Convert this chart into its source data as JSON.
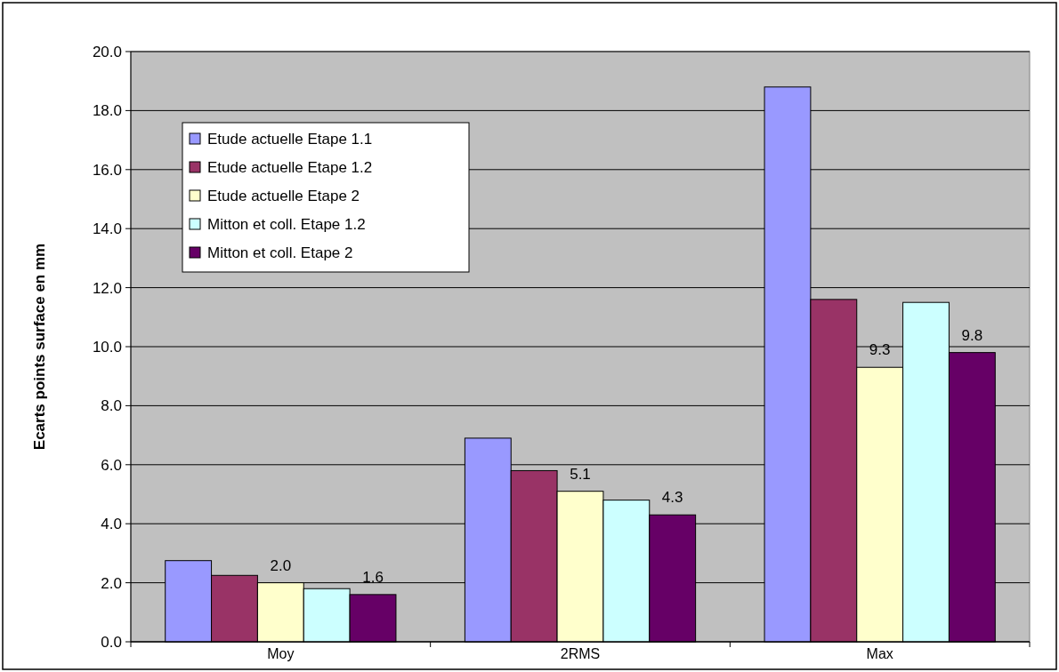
{
  "chart_data": {
    "type": "bar",
    "ylabel": "Ecarts points surface en mm",
    "categories": [
      "Moy",
      "2RMS",
      "Max"
    ],
    "series": [
      {
        "name": "Etude actuelle Etape 1.1",
        "color": "#9999ff",
        "values": [
          2.75,
          6.9,
          18.8
        ]
      },
      {
        "name": "Etude actuelle Etape 1.2",
        "color": "#993366",
        "values": [
          2.25,
          5.8,
          11.6
        ]
      },
      {
        "name": "Etude actuelle Etape 2",
        "color": "#ffffcc",
        "values": [
          2.0,
          5.1,
          9.3
        ],
        "value_labels": [
          "2.0",
          "5.1",
          "9.3"
        ]
      },
      {
        "name": "Mitton et coll. Etape 1.2",
        "color": "#ccffff",
        "values": [
          1.8,
          4.8,
          11.5
        ]
      },
      {
        "name": "Mitton et coll. Etape 2",
        "color": "#660066",
        "values": [
          1.6,
          4.3,
          9.8
        ],
        "value_labels": [
          "1.6",
          "4.3",
          "9.8"
        ]
      }
    ],
    "ylim": [
      0,
      20
    ],
    "yticks": [
      {
        "value": 0,
        "label": "0.0"
      },
      {
        "value": 2,
        "label": "2.0"
      },
      {
        "value": 4,
        "label": "4.0"
      },
      {
        "value": 6,
        "label": "6.0"
      },
      {
        "value": 8,
        "label": "8.0"
      },
      {
        "value": 10,
        "label": "10.0"
      },
      {
        "value": 12,
        "label": "12.0"
      },
      {
        "value": 14,
        "label": "14.0"
      },
      {
        "value": 16,
        "label": "16.0"
      },
      {
        "value": 18,
        "label": "18.0"
      },
      {
        "value": 20,
        "label": "20.0"
      }
    ],
    "grid": "y",
    "legend": "top left"
  }
}
